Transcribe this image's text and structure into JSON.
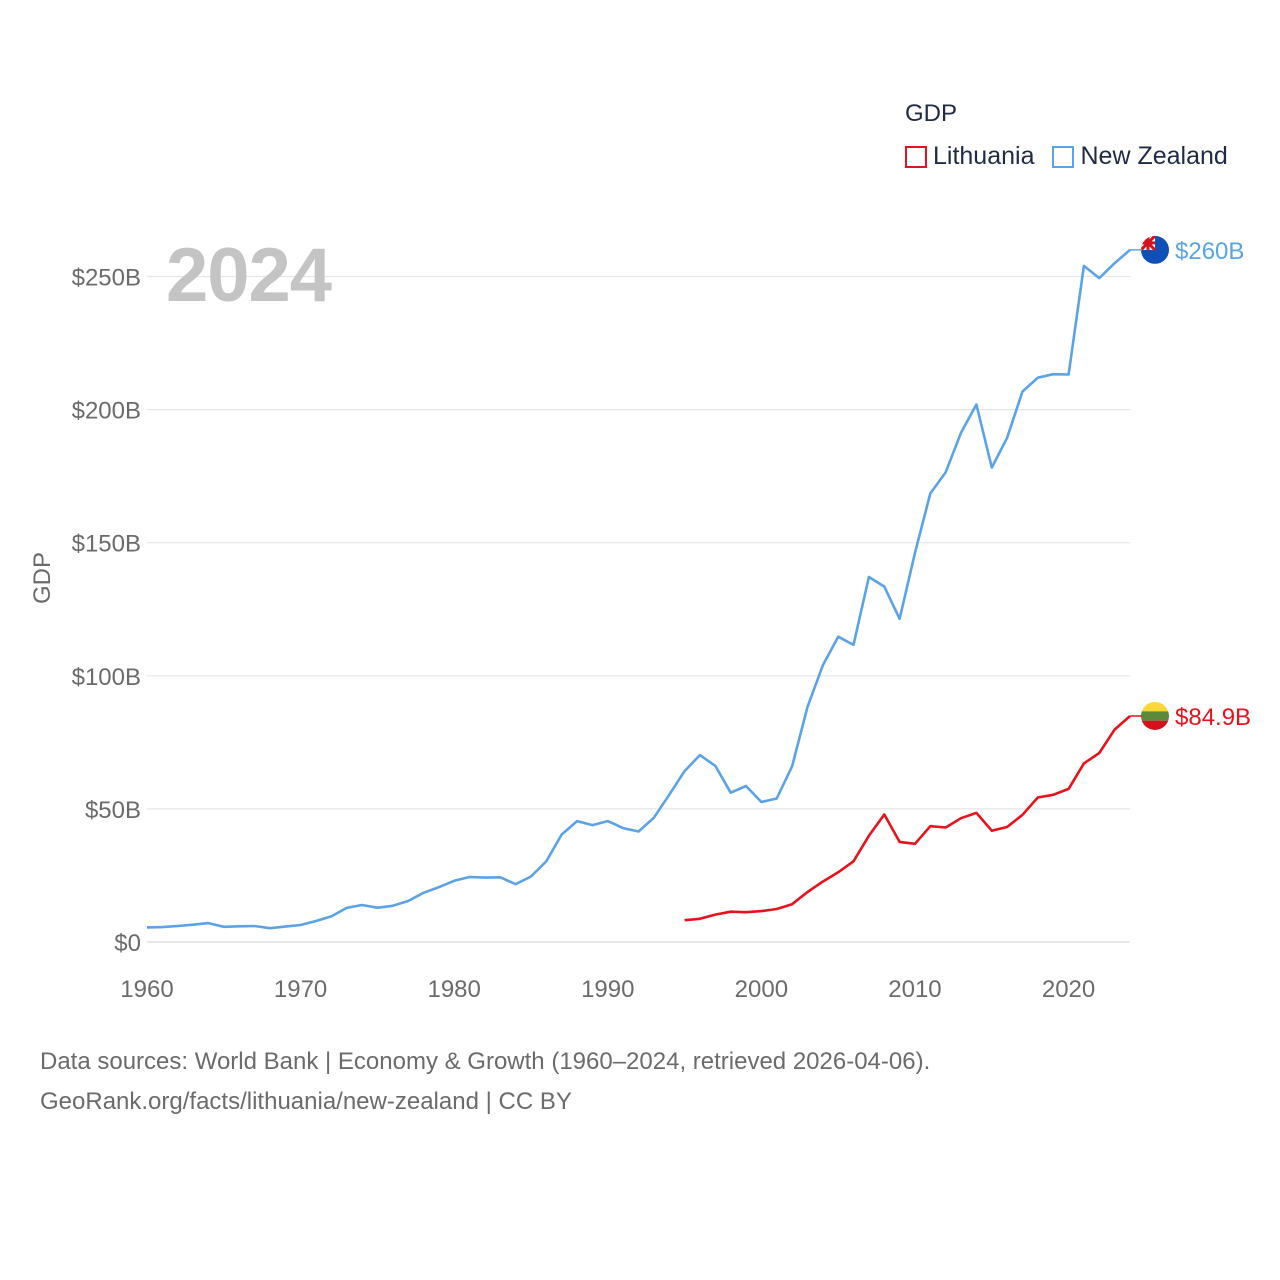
{
  "colors": {
    "lithuania": "#e8121c",
    "new_zealand": "#5ba3e6",
    "grid": "#e6e6e6",
    "axis_text": "#6b6b6b"
  },
  "legend": {
    "title": "GDP",
    "items": [
      {
        "label": "Lithuania",
        "color": "#e8121c"
      },
      {
        "label": "New Zealand",
        "color": "#5ba3e6"
      }
    ]
  },
  "year_label": "2024",
  "footer": {
    "line1": "Data sources: World Bank | Economy & Growth (1960–2024, retrieved 2026-04-06).",
    "line2": "GeoRank.org/facts/lithuania/new-zealand | CC BY"
  },
  "chart_data": {
    "type": "line",
    "title": "",
    "xlabel": "",
    "ylabel": "GDP",
    "xlim": [
      1960,
      2024
    ],
    "ylim": [
      0,
      260
    ],
    "y_unit": "billions USD",
    "x_ticks": [
      1960,
      1970,
      1980,
      1990,
      2000,
      2010,
      2020
    ],
    "y_ticks": [
      {
        "value": 0,
        "label": "$0"
      },
      {
        "value": 50,
        "label": "$50B"
      },
      {
        "value": 100,
        "label": "$100B"
      },
      {
        "value": 150,
        "label": "$150B"
      },
      {
        "value": 200,
        "label": "$200B"
      },
      {
        "value": 250,
        "label": "$250B"
      }
    ],
    "grid": true,
    "legend_position": "top-right",
    "series": [
      {
        "name": "Lithuania",
        "color": "#e8121c",
        "end_label": "$84.9B",
        "x": [
          1995,
          1996,
          1997,
          1998,
          1999,
          2000,
          2001,
          2002,
          2003,
          2004,
          2005,
          2006,
          2007,
          2008,
          2009,
          2010,
          2011,
          2012,
          2013,
          2014,
          2015,
          2016,
          2017,
          2018,
          2019,
          2020,
          2021,
          2022,
          2023,
          2024
        ],
        "values": [
          8.2,
          8.7,
          10.3,
          11.4,
          11.2,
          11.6,
          12.4,
          14.2,
          18.8,
          22.7,
          26.2,
          30.3,
          39.9,
          47.9,
          37.6,
          36.9,
          43.5,
          43.0,
          46.5,
          48.5,
          41.8,
          43.2,
          47.8,
          54.3,
          55.3,
          57.5,
          67.1,
          71.0,
          79.8,
          84.9
        ]
      },
      {
        "name": "New Zealand",
        "color": "#5ba3e6",
        "end_label": "$260B",
        "x": [
          1960,
          1961,
          1962,
          1963,
          1964,
          1965,
          1966,
          1967,
          1968,
          1969,
          1970,
          1971,
          1972,
          1973,
          1974,
          1975,
          1976,
          1977,
          1978,
          1979,
          1980,
          1981,
          1982,
          1983,
          1984,
          1985,
          1986,
          1987,
          1988,
          1989,
          1990,
          1991,
          1992,
          1993,
          1994,
          1995,
          1996,
          1997,
          1998,
          1999,
          2000,
          2001,
          2002,
          2003,
          2004,
          2005,
          2006,
          2007,
          2008,
          2009,
          2010,
          2011,
          2012,
          2013,
          2014,
          2015,
          2016,
          2017,
          2018,
          2019,
          2020,
          2021,
          2022,
          2023,
          2024
        ],
        "values": [
          5.5,
          5.6,
          6.0,
          6.5,
          7.1,
          5.7,
          5.9,
          6.0,
          5.2,
          5.8,
          6.4,
          7.9,
          9.6,
          12.8,
          13.9,
          12.9,
          13.6,
          15.4,
          18.5,
          20.6,
          23.0,
          24.4,
          24.2,
          24.3,
          21.7,
          24.6,
          30.3,
          40.4,
          45.4,
          43.9,
          45.4,
          42.8,
          41.5,
          46.7,
          55.3,
          64.2,
          70.2,
          66.2,
          56.1,
          58.6,
          52.6,
          53.9,
          66.0,
          88.3,
          103.9,
          114.7,
          111.6,
          137.1,
          133.5,
          121.4,
          146.2,
          168.5,
          176.5,
          191.3,
          201.9,
          178.2,
          189.4,
          206.8,
          212.0,
          213.3,
          213.2,
          254.0,
          249.4,
          255.0,
          260.0
        ]
      }
    ]
  }
}
